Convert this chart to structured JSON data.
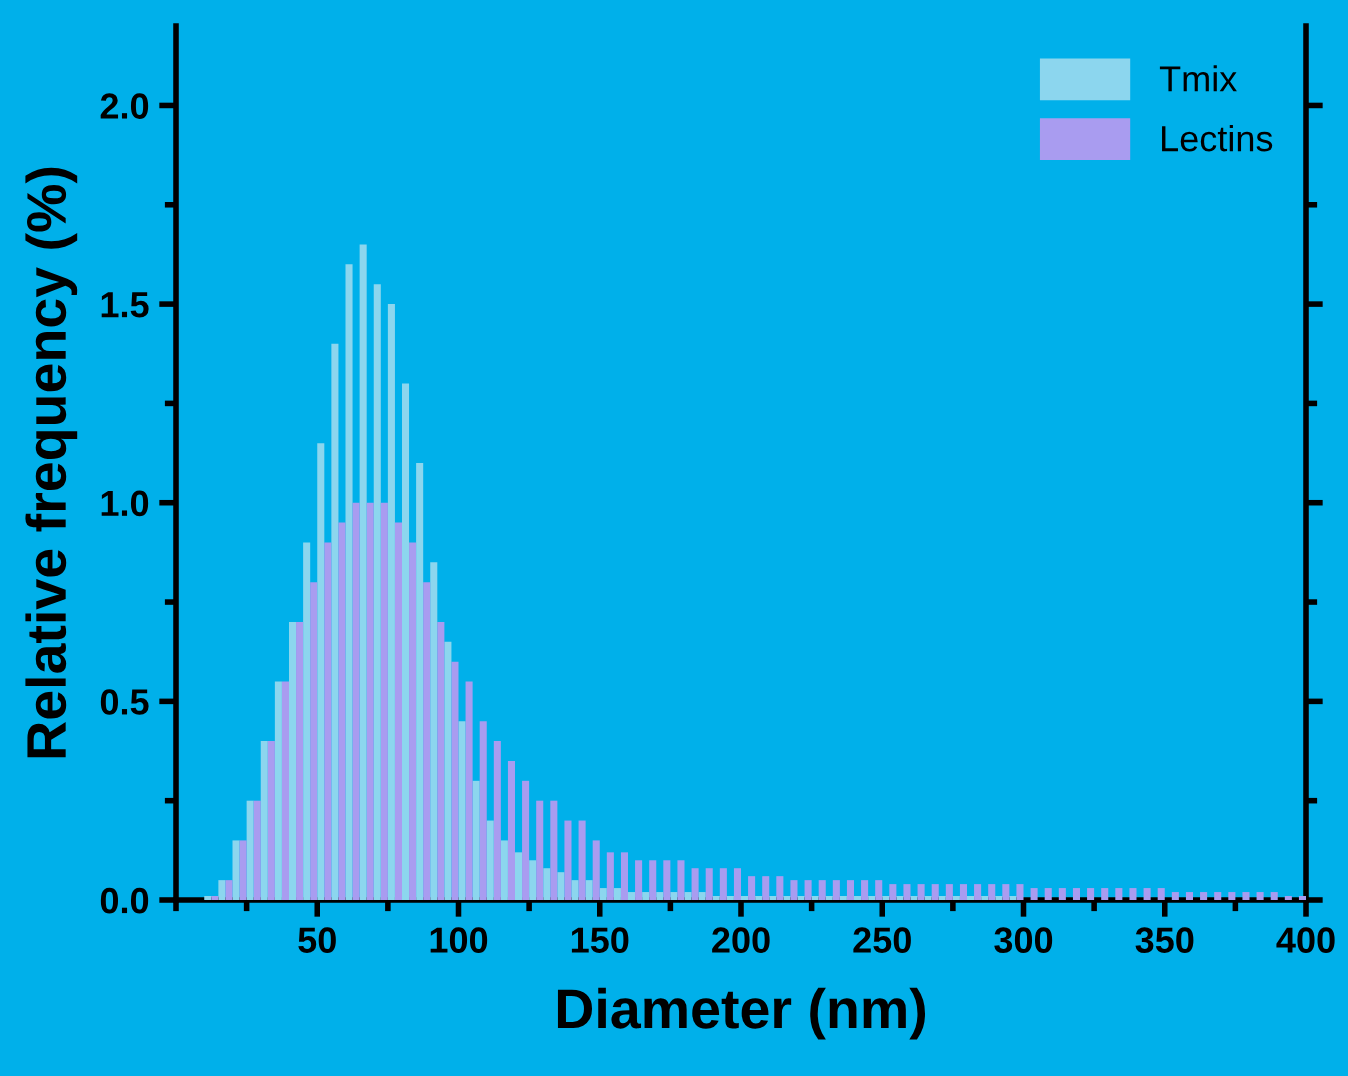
{
  "chart_data": {
    "type": "histogram",
    "xlabel": "Diameter (nm)",
    "ylabel": "Relative frequency (%)",
    "bins": [
      0,
      5,
      10,
      15,
      20,
      25,
      30,
      35,
      40,
      45,
      50,
      55,
      60,
      65,
      70,
      75,
      80,
      85,
      90,
      95,
      100,
      105,
      110,
      115,
      120,
      125,
      130,
      135,
      140,
      145,
      150,
      155,
      160,
      165,
      170,
      175,
      180,
      185,
      190,
      195,
      200,
      205,
      210,
      215,
      220,
      225,
      230,
      235,
      240,
      245,
      250,
      255,
      260,
      265,
      270,
      275,
      280,
      285,
      290,
      295,
      300,
      305,
      310,
      315,
      320,
      325,
      330,
      335,
      340,
      345,
      350,
      355,
      360,
      365,
      370,
      375,
      380,
      385,
      390,
      395,
      400
    ],
    "series": [
      {
        "name": "Tmix",
        "color": "#8cd6ee",
        "values": [
          0,
          0,
          0.01,
          0.05,
          0.15,
          0.25,
          0.4,
          0.55,
          0.7,
          0.9,
          1.15,
          1.4,
          1.6,
          1.65,
          1.55,
          1.5,
          1.3,
          1.1,
          0.85,
          0.65,
          0.45,
          0.3,
          0.2,
          0.15,
          0.12,
          0.1,
          0.08,
          0.07,
          0.05,
          0.05,
          0.03,
          0.03,
          0.02,
          0.02,
          0.02,
          0.02,
          0.02,
          0.02,
          0.01,
          0.01,
          0.01,
          0.01,
          0.01,
          0.01,
          0.01,
          0.01,
          0.01,
          0.01,
          0.01,
          0.01,
          0.01,
          0.01,
          0.01,
          0.01,
          0.01,
          0.01,
          0.01,
          0.01,
          0.01,
          0.01,
          0,
          0,
          0,
          0,
          0,
          0,
          0,
          0,
          0,
          0,
          0,
          0,
          0,
          0,
          0,
          0,
          0,
          0,
          0,
          0
        ]
      },
      {
        "name": "Lectins",
        "color": "#a99cf0",
        "values": [
          0,
          0,
          0.01,
          0.05,
          0.15,
          0.25,
          0.4,
          0.55,
          0.7,
          0.8,
          0.9,
          0.95,
          1.0,
          1.0,
          1.0,
          0.95,
          0.9,
          0.8,
          0.7,
          0.6,
          0.55,
          0.45,
          0.4,
          0.35,
          0.3,
          0.25,
          0.25,
          0.2,
          0.2,
          0.15,
          0.12,
          0.12,
          0.1,
          0.1,
          0.1,
          0.1,
          0.08,
          0.08,
          0.08,
          0.08,
          0.06,
          0.06,
          0.06,
          0.05,
          0.05,
          0.05,
          0.05,
          0.05,
          0.05,
          0.05,
          0.04,
          0.04,
          0.04,
          0.04,
          0.04,
          0.04,
          0.04,
          0.04,
          0.04,
          0.04,
          0.03,
          0.03,
          0.03,
          0.03,
          0.03,
          0.03,
          0.03,
          0.03,
          0.03,
          0.03,
          0.02,
          0.02,
          0.02,
          0.02,
          0.02,
          0.02,
          0.02,
          0.02,
          0.01,
          0.01
        ]
      }
    ],
    "xlim": [
      0,
      400
    ],
    "xticks": [
      50,
      100,
      150,
      200,
      250,
      300,
      350,
      400
    ],
    "ylim": [
      0,
      2.2
    ],
    "yticks": [
      {
        "value": 0,
        "label": "0.0"
      },
      0.5,
      {
        "value": 1,
        "label": "1.0"
      },
      1.5,
      {
        "value": 2,
        "label": "2.0"
      }
    ],
    "grid": false,
    "legend": "top right"
  }
}
